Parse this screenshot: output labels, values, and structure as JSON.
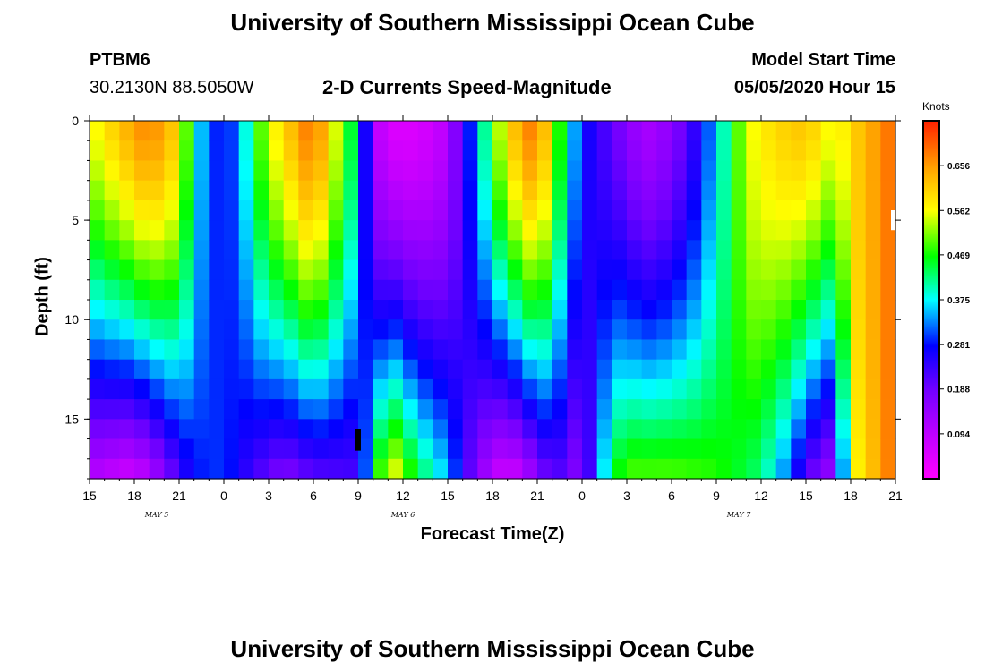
{
  "title_top": "University of Southern Mississippi Ocean Cube",
  "title_bottom": "University of Southern Mississippi Ocean Cube",
  "station": {
    "id": "PTBM6",
    "coords": "30.2130N 88.5050W"
  },
  "model_start": {
    "label": "Model Start Time",
    "value": "05/05/2020 Hour 15"
  },
  "chart_data": {
    "type": "heatmap",
    "title": "2-D Currents Speed-Magnitude",
    "xlabel": "Forecast Time(Z)",
    "ylabel": "Depth (ft)",
    "x_ticks": [
      "15",
      "18",
      "21",
      "0",
      "3",
      "6",
      "9",
      "12",
      "15",
      "18",
      "21",
      "0",
      "3",
      "6",
      "9",
      "12",
      "15",
      "18",
      "21"
    ],
    "x_hours": [
      0,
      3,
      6,
      9,
      12,
      15,
      18,
      21,
      24,
      27,
      30,
      33,
      36,
      39,
      42,
      45,
      48,
      51,
      54
    ],
    "xlim": [
      0,
      54
    ],
    "day_labels": [
      {
        "label": "MAY 5",
        "hour": 4.5
      },
      {
        "label": "MAY 6",
        "hour": 21
      },
      {
        "label": "MAY 7",
        "hour": 43.5
      }
    ],
    "y_ticks": [
      "0",
      "5",
      "10",
      "15"
    ],
    "y_values": [
      0,
      5,
      10,
      15
    ],
    "ylim": [
      0,
      18
    ],
    "colorbar": {
      "label": "Knots",
      "ticks": [
        "0.656",
        "0.562",
        "0.469",
        "0.375",
        "0.281",
        "0.188",
        "0.094"
      ],
      "tick_values": [
        0.656,
        0.562,
        0.469,
        0.375,
        0.281,
        0.188,
        0.094
      ],
      "range": [
        0.0,
        0.75
      ]
    },
    "approx_profile_knots": {
      "surface_speed_by_hour": [
        [
          0,
          0.55
        ],
        [
          2,
          0.62
        ],
        [
          4,
          0.68
        ],
        [
          6,
          0.6
        ],
        [
          7,
          0.4
        ],
        [
          8,
          0.3
        ],
        [
          9,
          0.28
        ],
        [
          10,
          0.32
        ],
        [
          11,
          0.45
        ],
        [
          12,
          0.55
        ],
        [
          15,
          0.7
        ],
        [
          18,
          0.4
        ],
        [
          19,
          0.12
        ],
        [
          20,
          0.05
        ],
        [
          22,
          0.05
        ],
        [
          24,
          0.1
        ],
        [
          26,
          0.35
        ],
        [
          28,
          0.6
        ],
        [
          30,
          0.7
        ],
        [
          32,
          0.4
        ],
        [
          33,
          0.28
        ],
        [
          35,
          0.2
        ],
        [
          37,
          0.12
        ],
        [
          38,
          0.12
        ],
        [
          40,
          0.2
        ],
        [
          42,
          0.35
        ],
        [
          44,
          0.55
        ],
        [
          46,
          0.6
        ],
        [
          48,
          0.62
        ],
        [
          50,
          0.55
        ],
        [
          51,
          0.6
        ],
        [
          54,
          0.7
        ]
      ],
      "bottom_speed_by_hour": [
        [
          0,
          0.1
        ],
        [
          3,
          0.06
        ],
        [
          5,
          0.15
        ],
        [
          6,
          0.22
        ],
        [
          7,
          0.28
        ],
        [
          9,
          0.3
        ],
        [
          11,
          0.22
        ],
        [
          13,
          0.16
        ],
        [
          15,
          0.2
        ],
        [
          18,
          0.22
        ],
        [
          19,
          0.4
        ],
        [
          20,
          0.6
        ],
        [
          22,
          0.45
        ],
        [
          24,
          0.35
        ],
        [
          26,
          0.15
        ],
        [
          28,
          0.05
        ],
        [
          30,
          0.14
        ],
        [
          31,
          0.22
        ],
        [
          33,
          0.15
        ],
        [
          35,
          0.45
        ],
        [
          36,
          0.5
        ],
        [
          39,
          0.5
        ],
        [
          42,
          0.48
        ],
        [
          45,
          0.42
        ],
        [
          47,
          0.3
        ],
        [
          48,
          0.2
        ],
        [
          50,
          0.12
        ],
        [
          51,
          0.55
        ],
        [
          54,
          0.7
        ]
      ]
    }
  }
}
